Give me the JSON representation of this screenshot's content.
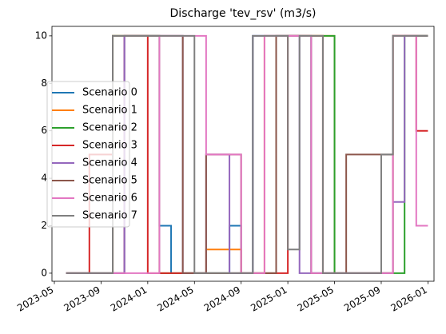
{
  "chart_data": {
    "type": "line",
    "step": true,
    "title": "Discharge 'tev_rsv' (m3/s)",
    "x": [
      "2023-06",
      "2023-07",
      "2023-08",
      "2023-09",
      "2023-10",
      "2023-11",
      "2023-12",
      "2024-01",
      "2024-02",
      "2024-03",
      "2024-04",
      "2024-05",
      "2024-06",
      "2024-07",
      "2024-08",
      "2024-09",
      "2024-10",
      "2024-11",
      "2024-12",
      "2025-01",
      "2025-02",
      "2025-03",
      "2025-04",
      "2025-05",
      "2025-06",
      "2025-07",
      "2025-08",
      "2025-09",
      "2025-10",
      "2025-11",
      "2025-12"
    ],
    "series": [
      {
        "name": "Scenario 0",
        "color": "#1f77b4",
        "values": [
          0,
          0,
          0,
          0,
          0,
          10,
          10,
          10,
          2,
          0,
          0,
          0,
          0,
          0,
          2,
          0,
          10,
          10,
          10,
          10,
          10,
          0,
          0,
          0,
          0,
          0,
          0,
          0,
          10,
          10,
          10
        ]
      },
      {
        "name": "Scenario 1",
        "color": "#ff7f0e",
        "values": [
          0,
          0,
          0,
          0,
          10,
          10,
          10,
          10,
          0,
          0,
          0,
          0,
          1,
          1,
          1,
          0,
          0,
          10,
          10,
          10,
          10,
          10,
          10,
          0,
          0,
          0,
          0,
          0,
          10,
          10,
          10
        ]
      },
      {
        "name": "Scenario 2",
        "color": "#2ca02c",
        "values": [
          0,
          0,
          0,
          0,
          10,
          10,
          10,
          10,
          0,
          0,
          0,
          0,
          0,
          0,
          0,
          0,
          0,
          0,
          10,
          10,
          10,
          10,
          10,
          0,
          0,
          0,
          0,
          0,
          0,
          10,
          10
        ]
      },
      {
        "name": "Scenario 3",
        "color": "#d62728",
        "values": [
          0,
          0,
          5,
          5,
          0,
          10,
          10,
          0,
          0,
          0,
          0,
          0,
          0,
          0,
          0,
          0,
          0,
          0,
          0,
          10,
          10,
          10,
          0,
          0,
          0,
          0,
          0,
          0,
          10,
          10,
          6
        ]
      },
      {
        "name": "Scenario 4",
        "color": "#9467bd",
        "values": [
          0,
          0,
          0,
          0,
          0,
          10,
          10,
          10,
          10,
          10,
          0,
          0,
          5,
          5,
          0,
          0,
          10,
          10,
          10,
          10,
          0,
          0,
          0,
          0,
          0,
          0,
          0,
          0,
          3,
          10,
          10
        ]
      },
      {
        "name": "Scenario 5",
        "color": "#8c564b",
        "values": [
          0,
          0,
          0,
          0,
          10,
          10,
          10,
          10,
          10,
          10,
          0,
          0,
          5,
          5,
          5,
          0,
          0,
          0,
          10,
          10,
          10,
          0,
          0,
          0,
          5,
          5,
          5,
          5,
          10,
          10,
          10
        ]
      },
      {
        "name": "Scenario 6",
        "color": "#e377c2",
        "values": [
          0,
          0,
          0,
          0,
          0,
          0,
          0,
          0,
          10,
          10,
          10,
          10,
          5,
          5,
          5,
          0,
          0,
          10,
          10,
          10,
          10,
          0,
          0,
          0,
          0,
          0,
          0,
          0,
          10,
          10,
          2
        ]
      },
      {
        "name": "Scenario 7",
        "color": "#7f7f7f",
        "values": [
          0,
          0,
          0,
          0,
          10,
          10,
          10,
          10,
          10,
          10,
          10,
          0,
          0,
          0,
          0,
          0,
          10,
          10,
          10,
          1,
          10,
          10,
          0,
          0,
          0,
          0,
          0,
          5,
          10,
          10,
          10
        ]
      }
    ],
    "xlim": [
      "2023-05",
      "2026-02"
    ],
    "xticks": [
      "2023-05",
      "2023-09",
      "2024-01",
      "2024-05",
      "2024-09",
      "2025-01",
      "2025-05",
      "2025-09",
      "2026-01"
    ],
    "ylim": [
      -0.34,
      10.4
    ],
    "yticks": [
      0,
      2,
      4,
      6,
      8,
      10
    ],
    "legend": "center left"
  }
}
